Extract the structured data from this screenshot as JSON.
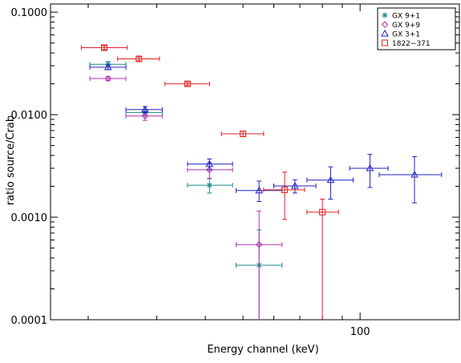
{
  "chart_data": {
    "type": "scatter",
    "xlabel": "Energy channel (keV)",
    "ylabel": "ratio source/Crab",
    "x_scale": "log",
    "y_scale": "log",
    "xlim": [
      16,
      180
    ],
    "ylim": [
      0.0001,
      0.12
    ],
    "x_tick_labels": [
      {
        "value": 100,
        "label": "100"
      }
    ],
    "y_tick_labels": [
      {
        "value": 0.1,
        "label": "0.1000"
      },
      {
        "value": 0.01,
        "label": "0.0100"
      },
      {
        "value": 0.001,
        "label": "0.0010"
      },
      {
        "value": 0.0001,
        "label": "0.0001"
      }
    ],
    "legend_position": "top-right",
    "series": [
      {
        "name": "GX 9+1",
        "color": "#1a8a8a",
        "marker": "asterisk",
        "points": [
          {
            "x": 22.5,
            "xlo": 20.2,
            "xhi": 25.0,
            "y": 0.031,
            "ylo": 0.029,
            "yhi": 0.033
          },
          {
            "x": 28.0,
            "xlo": 25.0,
            "xhi": 31.0,
            "y": 0.0105,
            "ylo": 0.0098,
            "yhi": 0.0112
          },
          {
            "x": 41.0,
            "xlo": 36.0,
            "xhi": 47.0,
            "y": 0.00205,
            "ylo": 0.00172,
            "yhi": 0.00238
          },
          {
            "x": 55.0,
            "xlo": 48.0,
            "xhi": 63.0,
            "y": 0.00034,
            "ylo": 0.0001,
            "yhi": 0.00075
          }
        ]
      },
      {
        "name": "GX 9+9",
        "color": "#b030b0",
        "marker": "diamond",
        "points": [
          {
            "x": 22.5,
            "xlo": 20.2,
            "xhi": 25.0,
            "y": 0.0225,
            "ylo": 0.0215,
            "yhi": 0.0235
          },
          {
            "x": 28.0,
            "xlo": 25.0,
            "xhi": 31.0,
            "y": 0.0097,
            "ylo": 0.0088,
            "yhi": 0.0106
          },
          {
            "x": 41.0,
            "xlo": 36.0,
            "xhi": 47.0,
            "y": 0.0029,
            "ylo": 0.0024,
            "yhi": 0.0034
          },
          {
            "x": 55.0,
            "xlo": 48.0,
            "xhi": 63.0,
            "y": 0.00054,
            "ylo": 0.0001,
            "yhi": 0.00115
          }
        ]
      },
      {
        "name": "GX 3+1",
        "color": "#2020c8",
        "marker": "triangle",
        "points": [
          {
            "x": 22.5,
            "xlo": 20.2,
            "xhi": 25.0,
            "y": 0.029,
            "ylo": 0.0275,
            "yhi": 0.0305
          },
          {
            "x": 28.0,
            "xlo": 25.0,
            "xhi": 31.0,
            "y": 0.0112,
            "ylo": 0.0104,
            "yhi": 0.012
          },
          {
            "x": 41.0,
            "xlo": 36.0,
            "xhi": 47.0,
            "y": 0.0033,
            "ylo": 0.0029,
            "yhi": 0.0037
          },
          {
            "x": 55.0,
            "xlo": 48.0,
            "xhi": 63.0,
            "y": 0.00182,
            "ylo": 0.00142,
            "yhi": 0.00225
          },
          {
            "x": 68.0,
            "xlo": 60.0,
            "xhi": 77.0,
            "y": 0.00202,
            "ylo": 0.00172,
            "yhi": 0.00232
          },
          {
            "x": 84.0,
            "xlo": 73.0,
            "xhi": 96.0,
            "y": 0.0023,
            "ylo": 0.0015,
            "yhi": 0.0031
          },
          {
            "x": 106.0,
            "xlo": 94.0,
            "xhi": 118.0,
            "y": 0.003,
            "ylo": 0.00195,
            "yhi": 0.0041
          },
          {
            "x": 138.0,
            "xlo": 112.0,
            "xhi": 162.0,
            "y": 0.0026,
            "ylo": 0.00138,
            "yhi": 0.0039
          }
        ]
      },
      {
        "name": "1822−371",
        "color": "#e02020",
        "marker": "square",
        "points": [
          {
            "x": 22.0,
            "xlo": 19.2,
            "xhi": 25.2,
            "y": 0.045,
            "ylo": 0.043,
            "yhi": 0.047
          },
          {
            "x": 27.0,
            "xlo": 23.8,
            "xhi": 30.5,
            "y": 0.035,
            "ylo": 0.0335,
            "yhi": 0.0365
          },
          {
            "x": 36.0,
            "xlo": 31.5,
            "xhi": 41.0,
            "y": 0.02,
            "ylo": 0.0192,
            "yhi": 0.0208
          },
          {
            "x": 50.0,
            "xlo": 44.0,
            "xhi": 56.5,
            "y": 0.0065,
            "ylo": 0.0061,
            "yhi": 0.0069
          },
          {
            "x": 64.0,
            "xlo": 56.5,
            "xhi": 72.0,
            "y": 0.00185,
            "ylo": 0.00095,
            "yhi": 0.00275
          },
          {
            "x": 80.0,
            "xlo": 73.0,
            "xhi": 88.0,
            "y": 0.00112,
            "ylo": 0.0001,
            "yhi": 0.0015
          }
        ]
      }
    ]
  }
}
